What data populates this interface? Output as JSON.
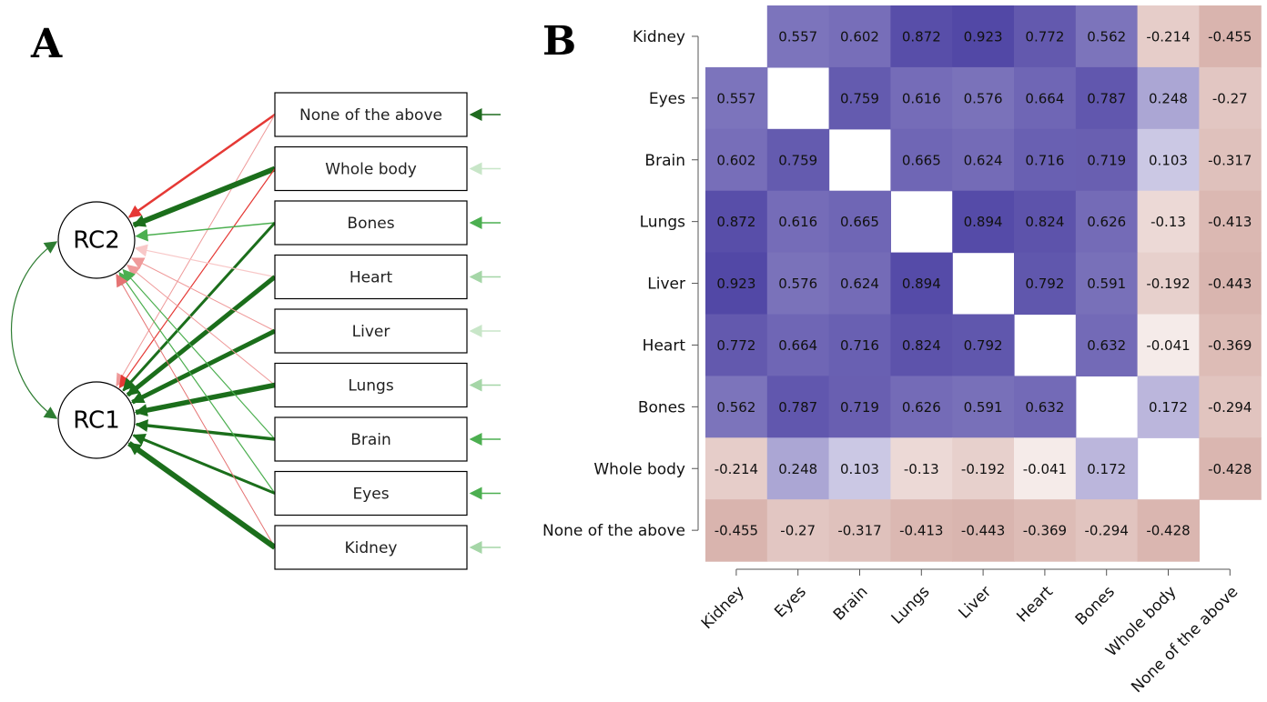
{
  "panels": {
    "a": "A",
    "b": "B"
  },
  "chart_data": [
    {
      "type": "diagram",
      "factors": [
        "RC2",
        "RC1"
      ],
      "indicators": [
        "None of the above",
        "Whole body",
        "Bones",
        "Heart",
        "Liver",
        "Lungs",
        "Brain",
        "Eyes",
        "Kidney"
      ],
      "residual_colors": [
        "#1f6b1f",
        "#c8e6c8",
        "#4caf50",
        "#a5d6a7",
        "#c8e6c8",
        "#a5d6a7",
        "#4caf50",
        "#4caf50",
        "#a5d6a7"
      ],
      "paths": [
        {
          "from": "None of the above",
          "to": "RC2",
          "weight": 2.5,
          "color": "#e53935"
        },
        {
          "from": "None of the above",
          "to": "RC1",
          "weight": 1,
          "color": "#ef9a9a"
        },
        {
          "from": "Whole body",
          "to": "RC2",
          "weight": 6,
          "color": "#1b6e1b"
        },
        {
          "from": "Whole body",
          "to": "RC1",
          "weight": 1.2,
          "color": "#e53935"
        },
        {
          "from": "Bones",
          "to": "RC2",
          "weight": 1.5,
          "color": "#4caf50"
        },
        {
          "from": "Bones",
          "to": "RC1",
          "weight": 3,
          "color": "#1b6e1b"
        },
        {
          "from": "Heart",
          "to": "RC2",
          "weight": 1.2,
          "color": "#f8c8c8"
        },
        {
          "from": "Heart",
          "to": "RC1",
          "weight": 5,
          "color": "#1b6e1b"
        },
        {
          "from": "Liver",
          "to": "RC2",
          "weight": 1,
          "color": "#ef9a9a"
        },
        {
          "from": "Liver",
          "to": "RC1",
          "weight": 5,
          "color": "#1b6e1b"
        },
        {
          "from": "Lungs",
          "to": "RC2",
          "weight": 1,
          "color": "#ef9a9a"
        },
        {
          "from": "Lungs",
          "to": "RC1",
          "weight": 5.5,
          "color": "#1b6e1b"
        },
        {
          "from": "Brain",
          "to": "RC2",
          "weight": 1.2,
          "color": "#4caf50"
        },
        {
          "from": "Brain",
          "to": "RC1",
          "weight": 3.5,
          "color": "#1b6e1b"
        },
        {
          "from": "Eyes",
          "to": "RC2",
          "weight": 1.2,
          "color": "#4caf50"
        },
        {
          "from": "Eyes",
          "to": "RC1",
          "weight": 3,
          "color": "#1b6e1b"
        },
        {
          "from": "Kidney",
          "to": "RC2",
          "weight": 1,
          "color": "#e57373"
        },
        {
          "from": "Kidney",
          "to": "RC1",
          "weight": 6,
          "color": "#1b6e1b"
        }
      ],
      "factor_covariance": {
        "between": [
          "RC2",
          "RC1"
        ],
        "color": "#2e7d32"
      }
    },
    {
      "type": "heatmap",
      "rows": [
        "Kidney",
        "Eyes",
        "Brain",
        "Lungs",
        "Liver",
        "Heart",
        "Bones",
        "Whole body",
        "None of the above"
      ],
      "cols": [
        "Kidney",
        "Eyes",
        "Brain",
        "Lungs",
        "Liver",
        "Heart",
        "Bones",
        "Whole body",
        "None of the above"
      ],
      "values": [
        [
          null,
          "0.557",
          "0.602",
          "0.872",
          "0.923",
          "0.772",
          "0.562",
          "-0.214",
          "-0.455"
        ],
        [
          "0.557",
          null,
          "0.759",
          "0.616",
          "0.576",
          "0.664",
          "0.787",
          "0.248",
          "-0.27"
        ],
        [
          "0.602",
          "0.759",
          null,
          "0.665",
          "0.624",
          "0.716",
          "0.719",
          "0.103",
          "-0.317"
        ],
        [
          "0.872",
          "0.616",
          "0.665",
          null,
          "0.894",
          "0.824",
          "0.626",
          "-0.13",
          "-0.413"
        ],
        [
          "0.923",
          "0.576",
          "0.624",
          "0.894",
          null,
          "0.792",
          "0.591",
          "-0.192",
          "-0.443"
        ],
        [
          "0.772",
          "0.664",
          "0.716",
          "0.824",
          "0.792",
          null,
          "0.632",
          "-0.041",
          "-0.369"
        ],
        [
          "0.562",
          "0.787",
          "0.719",
          "0.626",
          "0.591",
          "0.632",
          null,
          "0.172",
          "-0.294"
        ],
        [
          "-0.214",
          "0.248",
          "0.103",
          "-0.13",
          "-0.192",
          "-0.041",
          "0.172",
          null,
          "-0.428"
        ],
        [
          "-0.455",
          "-0.27",
          "-0.317",
          "-0.413",
          "-0.443",
          "-0.369",
          "-0.294",
          "-0.428",
          null
        ]
      ],
      "color_low": "#b36a5e",
      "color_mid": "#ffffff",
      "color_high": "#3b2f9a",
      "range": [
        -1,
        1
      ]
    }
  ]
}
